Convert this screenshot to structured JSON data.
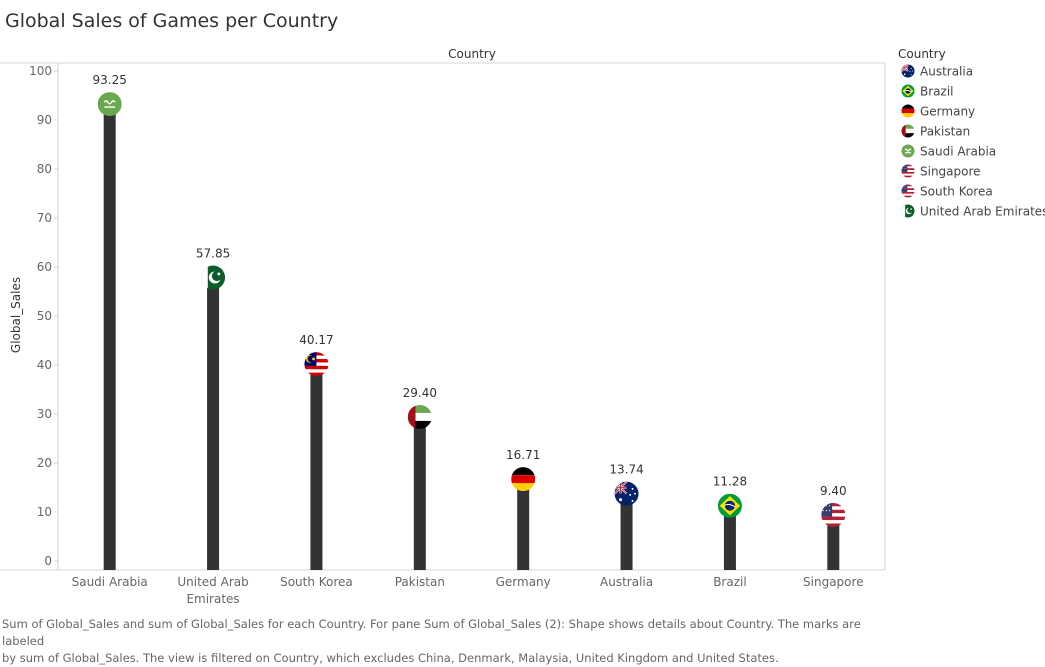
{
  "chart_data": {
    "type": "bar",
    "title": "Global Sales of Games per Country",
    "column_header": "Country",
    "ylabel": "Global_Sales",
    "ylim": [
      0,
      100
    ],
    "yticks": [
      0,
      10,
      20,
      30,
      40,
      50,
      60,
      70,
      80,
      90,
      100
    ],
    "categories": [
      "Saudi Arabia",
      "United Arab Emirates",
      "South Korea",
      "Pakistan",
      "Germany",
      "Australia",
      "Brazil",
      "Singapore"
    ],
    "category_lines": [
      [
        "Saudi Arabia"
      ],
      [
        "United Arab",
        "Emirates"
      ],
      [
        "South Korea"
      ],
      [
        "Pakistan"
      ],
      [
        "Germany"
      ],
      [
        "Australia"
      ],
      [
        "Brazil"
      ],
      [
        "Singapore"
      ]
    ],
    "values": [
      93.25,
      57.85,
      40.17,
      29.4,
      16.71,
      13.74,
      11.28,
      9.4
    ],
    "value_labels": [
      "93.25",
      "57.85",
      "40.17",
      "29.40",
      "16.71",
      "13.74",
      "11.28",
      "9.40"
    ],
    "marker_flags": [
      "saudi-arabia-flag",
      "pakistan-flag",
      "malaysia-flag",
      "uae-flag",
      "germany-flag",
      "australia-flag",
      "brazil-flag",
      "usa-flag"
    ],
    "bar_color": "#333333",
    "grid": false,
    "legend": {
      "title": "Country",
      "position": "right",
      "items": [
        {
          "label": "Australia",
          "icon": "australia-flag"
        },
        {
          "label": "Brazil",
          "icon": "brazil-flag"
        },
        {
          "label": "Germany",
          "icon": "germany-flag"
        },
        {
          "label": "Pakistan",
          "icon": "uae-flag"
        },
        {
          "label": "Saudi Arabia",
          "icon": "saudi-arabia-flag"
        },
        {
          "label": "Singapore",
          "icon": "usa-flag"
        },
        {
          "label": "South Korea",
          "icon": "usa-flag"
        },
        {
          "label": "United Arab Emirates",
          "icon": "pakistan-flag"
        }
      ]
    }
  },
  "caption": {
    "line1": "Sum of Global_Sales and sum of Global_Sales for each Country.  For pane Sum of Global_Sales (2):  Shape shows details about Country.  The marks are labeled",
    "line2": "by sum of Global_Sales. The view is filtered on Country, which excludes China, Denmark, Malaysia, United Kingdom and United States."
  }
}
